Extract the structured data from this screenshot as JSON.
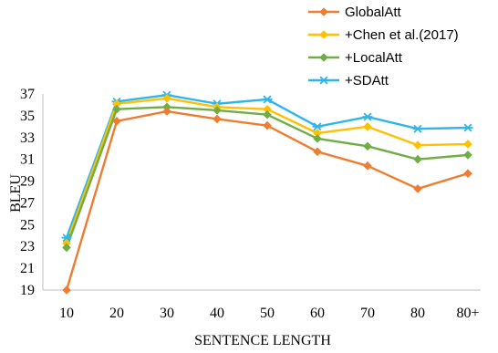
{
  "chart_data": {
    "type": "line",
    "title": "",
    "xlabel": "SENTENCE LENGTH",
    "ylabel": "BLEU",
    "categories": [
      "10",
      "20",
      "30",
      "40",
      "50",
      "60",
      "70",
      "80",
      "80+"
    ],
    "yticks": [
      "19",
      "21",
      "23",
      "25",
      "27",
      "29",
      "31",
      "33",
      "35",
      "37"
    ],
    "ylim": [
      19,
      37
    ],
    "grid": false,
    "legend": "top-right",
    "series": [
      {
        "name": "GlobalAtt",
        "color": "#ED7D31",
        "marker": "diamond",
        "values": [
          19.0,
          34.5,
          35.4,
          34.7,
          34.1,
          31.7,
          30.4,
          28.3,
          29.7
        ]
      },
      {
        "name": "+Chen et al.(2017)",
        "color": "#FFC000",
        "marker": "diamond",
        "values": [
          23.3,
          36.1,
          36.6,
          35.8,
          35.6,
          33.4,
          34.0,
          32.3,
          32.4
        ]
      },
      {
        "name": "+LocalAtt",
        "color": "#70AD47",
        "marker": "diamond",
        "values": [
          22.9,
          35.6,
          35.8,
          35.5,
          35.1,
          32.9,
          32.2,
          31.0,
          31.4
        ]
      },
      {
        "name": "+SDAtt",
        "color": "#2EB6E8",
        "marker": "asterisk",
        "values": [
          23.8,
          36.3,
          36.9,
          36.1,
          36.5,
          34.0,
          34.9,
          33.8,
          33.9
        ]
      }
    ]
  }
}
